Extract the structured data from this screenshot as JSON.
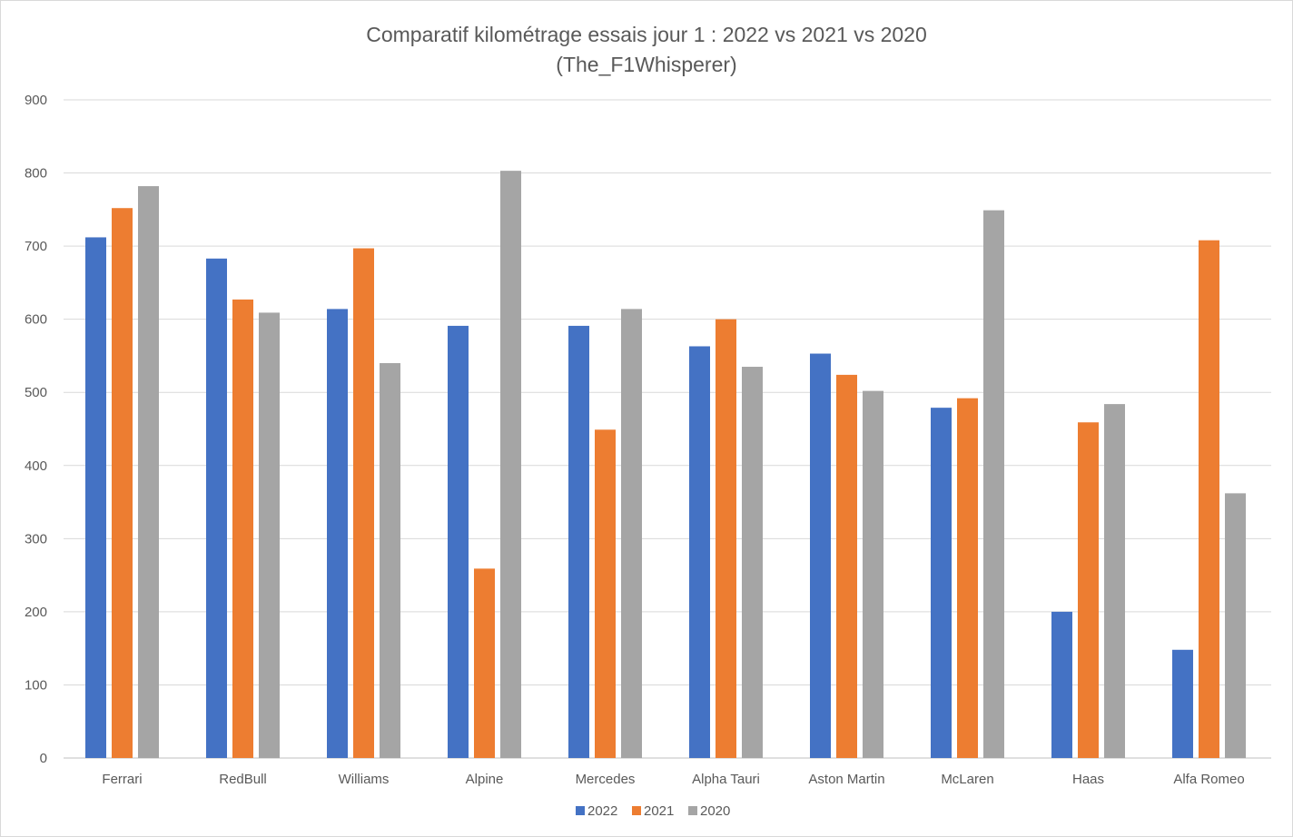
{
  "chart_data": {
    "type": "bar",
    "title": "Comparatif kilométrage essais jour 1 : 2022 vs 2021 vs 2020",
    "subtitle": "(The_F1Whisperer)",
    "xlabel": "",
    "ylabel": "",
    "ylim": [
      0,
      900
    ],
    "yticks": [
      0,
      100,
      200,
      300,
      400,
      500,
      600,
      700,
      800,
      900
    ],
    "grid": true,
    "legend_position": "bottom",
    "categories": [
      "Ferrari",
      "RedBull",
      "Williams",
      "Alpine",
      "Mercedes",
      "Alpha Tauri",
      "Aston Martin",
      "McLaren",
      "Haas",
      "Alfa Romeo"
    ],
    "series": [
      {
        "name": "2022",
        "color": "#4472c4",
        "values": [
          712,
          683,
          614,
          591,
          591,
          563,
          553,
          479,
          200,
          148
        ]
      },
      {
        "name": "2021",
        "color": "#ed7d31",
        "values": [
          752,
          627,
          697,
          259,
          449,
          600,
          524,
          492,
          459,
          708
        ]
      },
      {
        "name": "2020",
        "color": "#a5a5a5",
        "values": [
          782,
          609,
          540,
          803,
          614,
          535,
          502,
          749,
          484,
          362
        ]
      }
    ]
  }
}
